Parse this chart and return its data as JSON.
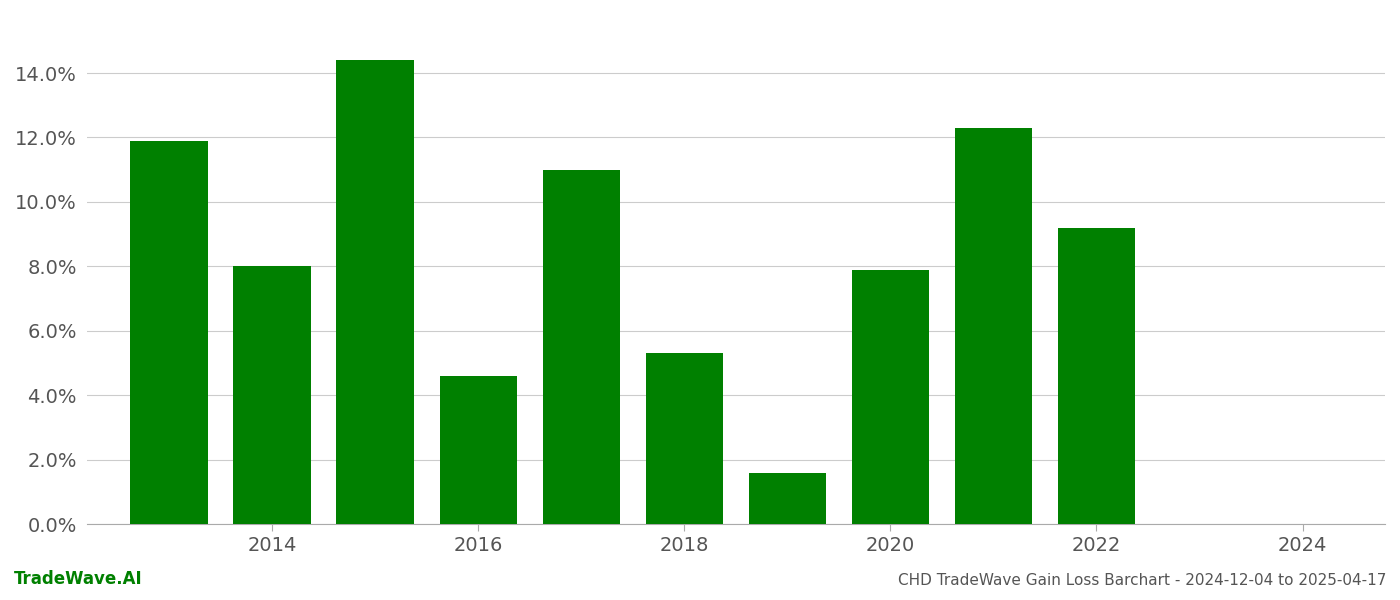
{
  "years": [
    2013,
    2014,
    2015,
    2016,
    2017,
    2018,
    2019,
    2020,
    2021,
    2022
  ],
  "values": [
    0.119,
    0.08,
    0.144,
    0.046,
    0.11,
    0.053,
    0.016,
    0.079,
    0.123,
    0.092
  ],
  "bar_color": "#008000",
  "background_color": "#ffffff",
  "grid_color": "#cccccc",
  "ylabel_ticks": [
    0.0,
    0.02,
    0.04,
    0.06,
    0.08,
    0.1,
    0.12,
    0.14
  ],
  "ylim": [
    0.0,
    0.158
  ],
  "xlim": [
    2012.2,
    2024.8
  ],
  "xticks": [
    2014,
    2016,
    2018,
    2020,
    2022,
    2024
  ],
  "footer_left": "TradeWave.AI",
  "footer_right": "CHD TradeWave Gain Loss Barchart - 2024-12-04 to 2025-04-17",
  "bar_width": 0.75,
  "figsize": [
    14.0,
    6.0
  ],
  "dpi": 100
}
